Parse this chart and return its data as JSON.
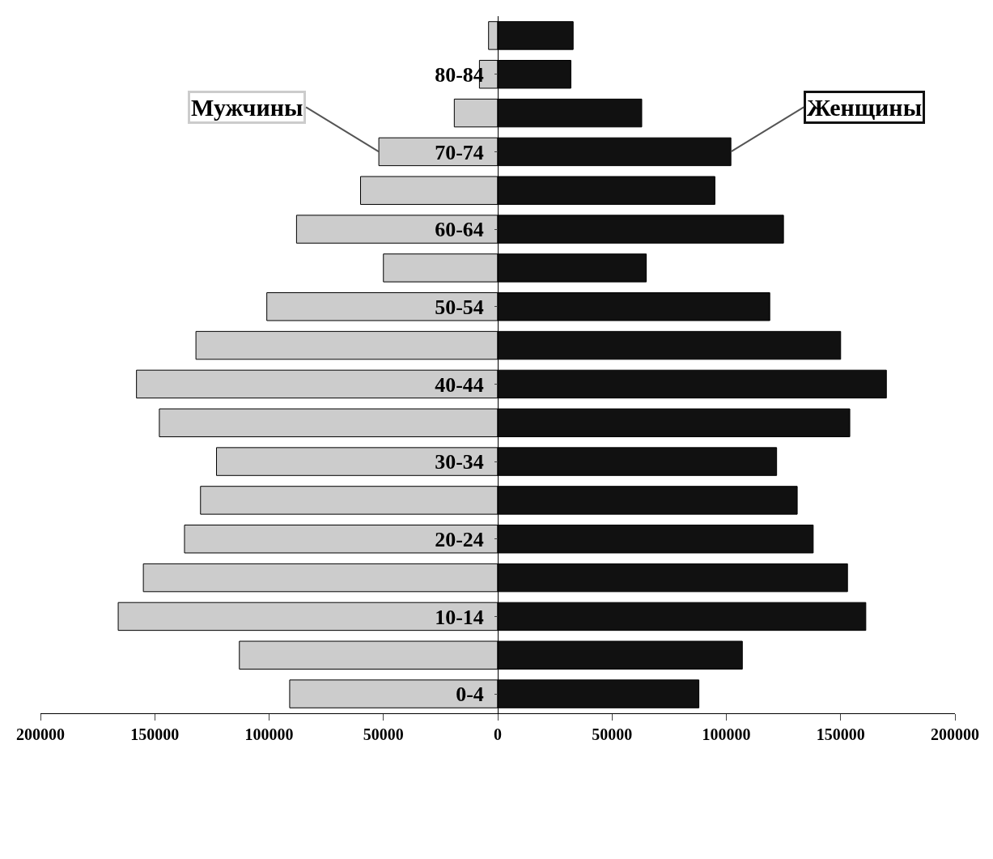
{
  "chart_data": {
    "type": "bar",
    "orientation": "horizontal",
    "categories": [
      null,
      "80-84",
      null,
      "70-74",
      null,
      "60-64",
      null,
      "50-54",
      null,
      "40-44",
      null,
      "30-34",
      null,
      "20-24",
      null,
      "10-14",
      null,
      "0-4"
    ],
    "series": [
      {
        "name": "Мужчины",
        "color": "#cccccc",
        "values": [
          -4000,
          -8000,
          -19000,
          -52000,
          -60000,
          -88000,
          -50000,
          -101000,
          -132000,
          -158000,
          -148000,
          -123000,
          -130000,
          -137000,
          -155000,
          -166000,
          -113000,
          -91000
        ]
      },
      {
        "name": "Женщины",
        "color": "#111111",
        "values": [
          33000,
          32000,
          63000,
          102000,
          95000,
          125000,
          65000,
          119000,
          150000,
          170000,
          154000,
          122000,
          131000,
          138000,
          153000,
          161000,
          107000,
          88000
        ]
      }
    ],
    "xlim": [
      -200000,
      200000
    ],
    "xticks": [
      {
        "value": -200000,
        "label": "200000"
      },
      {
        "value": -150000,
        "label": "150000"
      },
      {
        "value": -100000,
        "label": "100000"
      },
      {
        "value": -50000,
        "label": "50000"
      },
      0,
      50000,
      100000,
      150000,
      200000
    ],
    "stacked": true,
    "legend": false
  }
}
